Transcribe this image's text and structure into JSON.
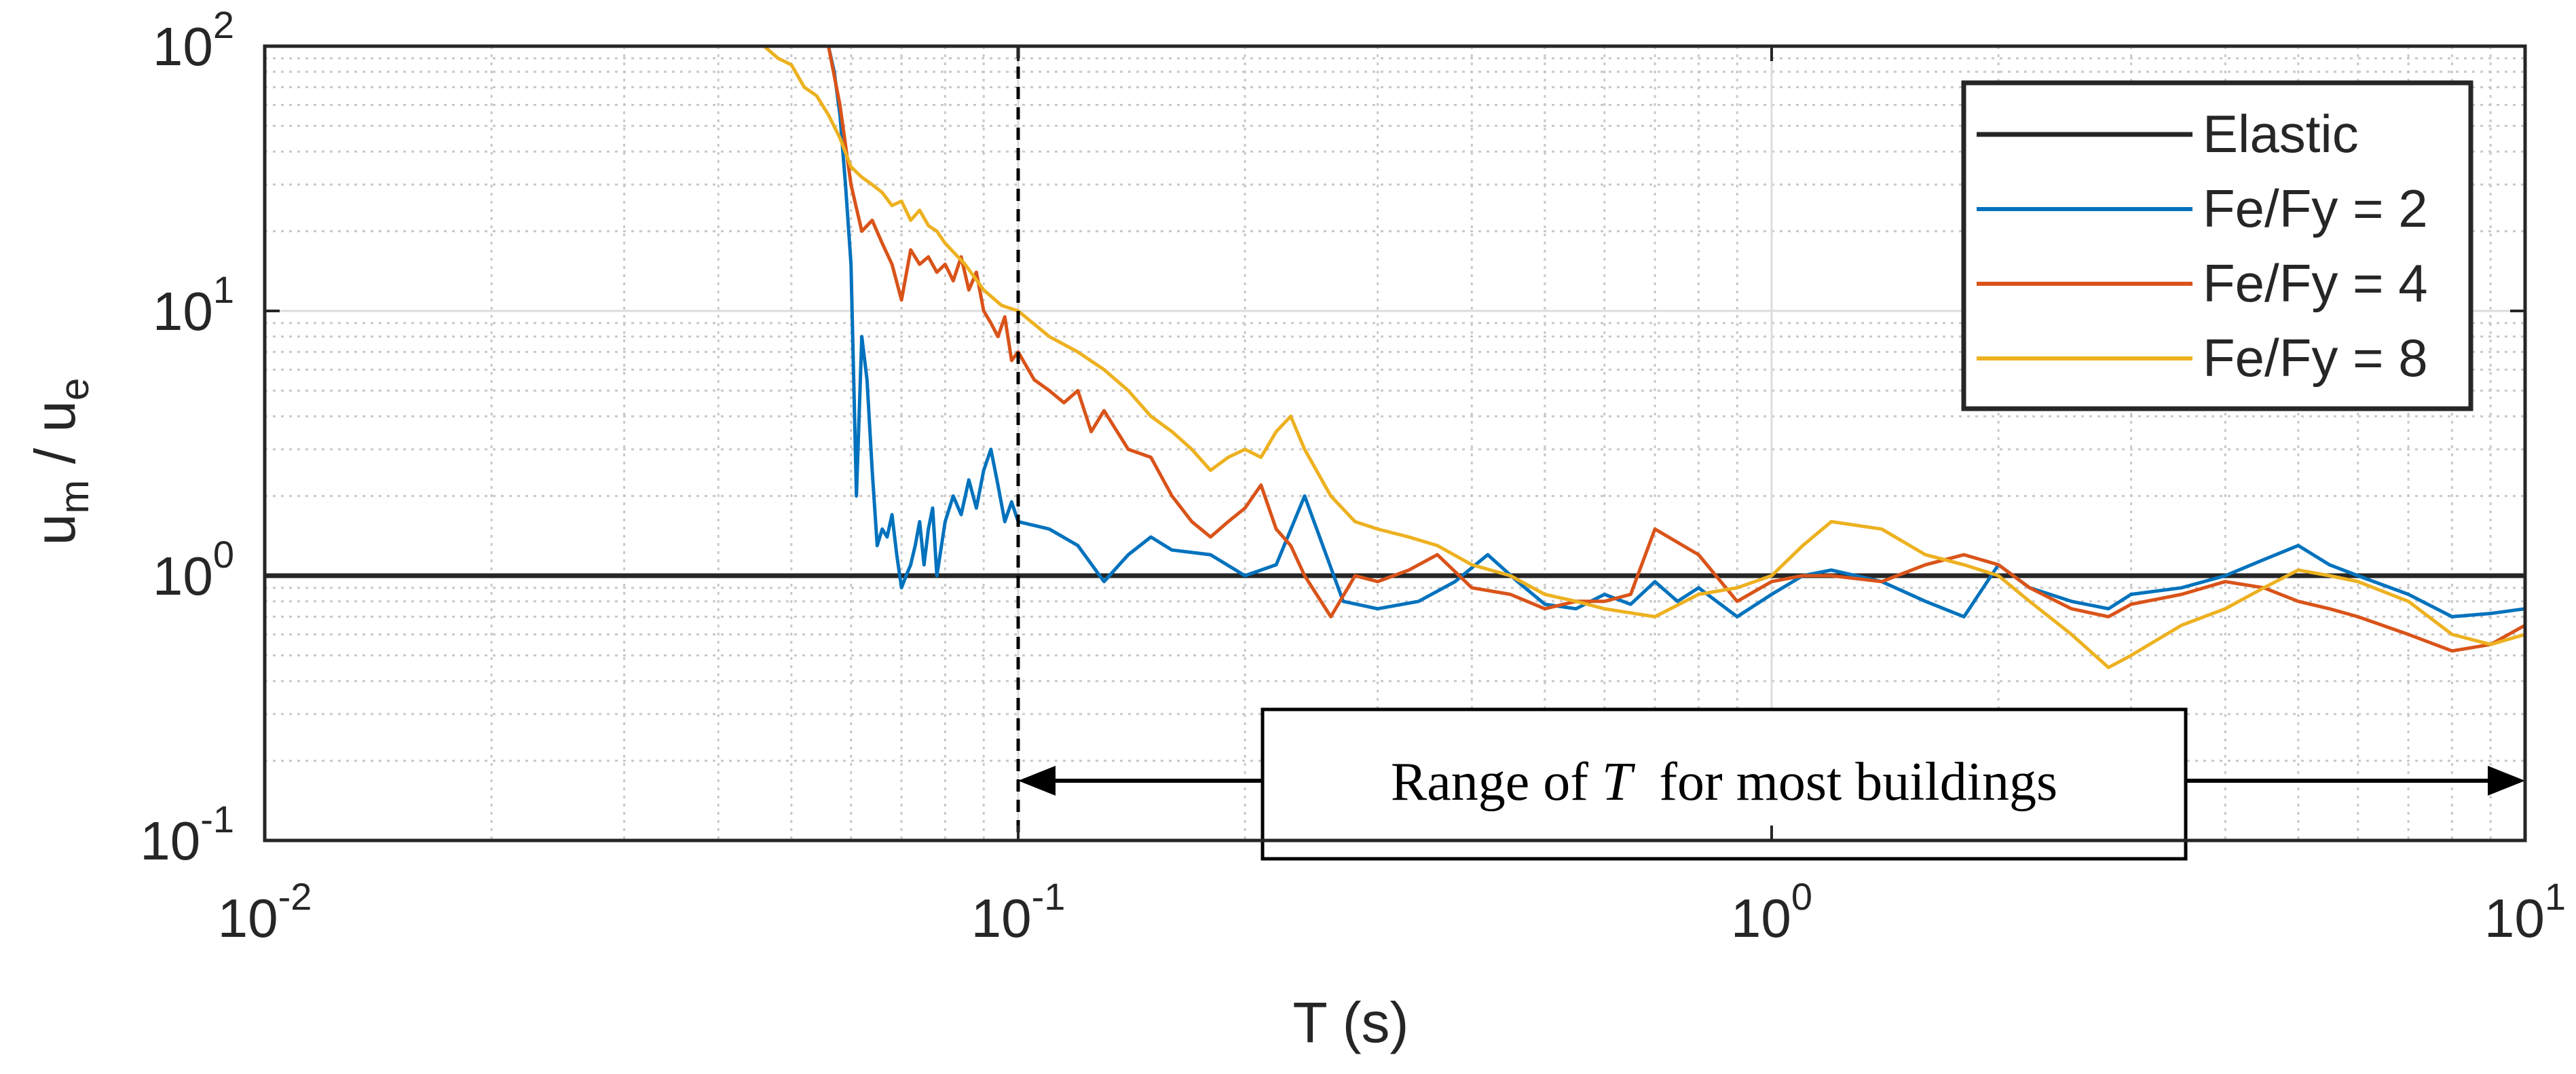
{
  "chart_data": {
    "type": "line",
    "xscale": "log",
    "yscale": "log",
    "xlim": [
      0.01,
      10
    ],
    "ylim": [
      0.1,
      100
    ],
    "xlabel": "T (s)",
    "ylabel_base": "u",
    "ylabel_num_sub": "m",
    "ylabel_sep": " / ",
    "ylabel_den_sub": "e",
    "grid": true,
    "legend_position": "top-right",
    "x_ticks": [
      {
        "value": 0.01,
        "base": "10",
        "exp": "-2"
      },
      {
        "value": 0.1,
        "base": "10",
        "exp": "-1"
      },
      {
        "value": 1,
        "base": "10",
        "exp": "0"
      },
      {
        "value": 10,
        "base": "10",
        "exp": "1"
      }
    ],
    "y_ticks": [
      {
        "value": 0.1,
        "base": "10",
        "exp": "-1"
      },
      {
        "value": 1,
        "base": "10",
        "exp": "0"
      },
      {
        "value": 10,
        "base": "10",
        "exp": "1"
      },
      {
        "value": 100,
        "base": "10",
        "exp": "2"
      }
    ],
    "series": [
      {
        "name": "Elastic",
        "color": "#262626",
        "x": [
          0.01,
          10
        ],
        "y": [
          1,
          1
        ]
      },
      {
        "name": "Fe/Fy = 2",
        "color": "#0072BD",
        "x": [
          0.056,
          0.057,
          0.058,
          0.059,
          0.06,
          0.061,
          0.062,
          0.063,
          0.064,
          0.065,
          0.066,
          0.067,
          0.068,
          0.069,
          0.07,
          0.071,
          0.072,
          0.073,
          0.074,
          0.075,
          0.076,
          0.077,
          0.078,
          0.08,
          0.082,
          0.084,
          0.086,
          0.088,
          0.09,
          0.092,
          0.094,
          0.096,
          0.098,
          0.1,
          0.11,
          0.12,
          0.13,
          0.14,
          0.15,
          0.16,
          0.18,
          0.2,
          0.22,
          0.24,
          0.27,
          0.3,
          0.34,
          0.38,
          0.42,
          0.46,
          0.5,
          0.55,
          0.6,
          0.65,
          0.7,
          0.75,
          0.8,
          0.9,
          1.0,
          1.1,
          1.2,
          1.4,
          1.6,
          1.8,
          2.0,
          2.2,
          2.5,
          2.8,
          3.0,
          3.5,
          4.0,
          4.5,
          5.0,
          5.5,
          6.0,
          7.0,
          8.0,
          9.0,
          10.0
        ],
        "y": [
          100,
          80,
          55,
          30,
          15,
          2.0,
          8.0,
          5.5,
          2.5,
          1.3,
          1.5,
          1.4,
          1.7,
          1.2,
          0.9,
          1.0,
          1.1,
          1.3,
          1.6,
          1.1,
          1.5,
          1.8,
          1.0,
          1.6,
          2.0,
          1.7,
          2.3,
          1.8,
          2.5,
          3.0,
          2.2,
          1.6,
          1.9,
          1.6,
          1.5,
          1.3,
          0.95,
          1.2,
          1.4,
          1.25,
          1.2,
          1.0,
          1.1,
          2.0,
          0.8,
          0.75,
          0.8,
          0.95,
          1.2,
          0.95,
          0.78,
          0.75,
          0.85,
          0.78,
          0.95,
          0.8,
          0.9,
          0.7,
          0.85,
          1.0,
          1.05,
          0.95,
          0.8,
          0.7,
          1.1,
          0.9,
          0.8,
          0.75,
          0.85,
          0.9,
          1.0,
          1.15,
          1.3,
          1.1,
          1.0,
          0.85,
          0.7,
          0.72,
          0.75
        ]
      },
      {
        "name": "Fe/Fy = 4",
        "color": "#D95319",
        "x": [
          0.056,
          0.058,
          0.06,
          0.062,
          0.064,
          0.066,
          0.068,
          0.07,
          0.072,
          0.074,
          0.076,
          0.078,
          0.08,
          0.082,
          0.084,
          0.086,
          0.088,
          0.09,
          0.092,
          0.094,
          0.096,
          0.098,
          0.1,
          0.105,
          0.11,
          0.115,
          0.12,
          0.125,
          0.13,
          0.14,
          0.15,
          0.16,
          0.17,
          0.18,
          0.19,
          0.2,
          0.21,
          0.22,
          0.23,
          0.24,
          0.26,
          0.28,
          0.3,
          0.33,
          0.36,
          0.4,
          0.45,
          0.5,
          0.55,
          0.6,
          0.65,
          0.7,
          0.8,
          0.9,
          1.0,
          1.1,
          1.2,
          1.4,
          1.6,
          1.8,
          2.0,
          2.2,
          2.5,
          2.8,
          3.0,
          3.5,
          4.0,
          4.5,
          5.0,
          5.5,
          6.0,
          7.0,
          8.0,
          9.0,
          10.0
        ],
        "y": [
          100,
          60,
          30,
          20,
          22,
          18,
          15,
          11,
          17,
          15,
          16,
          14,
          15,
          13,
          16,
          12,
          14,
          10,
          9,
          8,
          9.5,
          6.5,
          7,
          5.5,
          5,
          4.5,
          5,
          3.5,
          4.2,
          3,
          2.8,
          2.0,
          1.6,
          1.4,
          1.6,
          1.8,
          2.2,
          1.5,
          1.3,
          1.0,
          0.7,
          1.0,
          0.95,
          1.05,
          1.2,
          0.9,
          0.85,
          0.75,
          0.8,
          0.8,
          0.85,
          1.5,
          1.2,
          0.8,
          0.95,
          1.0,
          1.0,
          0.95,
          1.1,
          1.2,
          1.1,
          0.9,
          0.75,
          0.7,
          0.78,
          0.85,
          0.95,
          0.9,
          0.8,
          0.75,
          0.7,
          0.6,
          0.52,
          0.55,
          0.65
        ]
      },
      {
        "name": "Fe/Fy = 8",
        "color": "#EDB120",
        "x": [
          0.046,
          0.048,
          0.05,
          0.052,
          0.054,
          0.056,
          0.058,
          0.06,
          0.062,
          0.064,
          0.066,
          0.068,
          0.07,
          0.072,
          0.074,
          0.076,
          0.078,
          0.08,
          0.085,
          0.09,
          0.095,
          0.1,
          0.11,
          0.12,
          0.13,
          0.14,
          0.15,
          0.16,
          0.17,
          0.18,
          0.19,
          0.2,
          0.21,
          0.22,
          0.23,
          0.24,
          0.26,
          0.28,
          0.3,
          0.33,
          0.36,
          0.4,
          0.45,
          0.5,
          0.55,
          0.6,
          0.7,
          0.8,
          0.9,
          1.0,
          1.1,
          1.2,
          1.4,
          1.6,
          1.8,
          2.0,
          2.2,
          2.5,
          2.8,
          3.0,
          3.5,
          4.0,
          4.5,
          5.0,
          5.5,
          6.0,
          7.0,
          8.0,
          9.0,
          10.0
        ],
        "y": [
          100,
          90,
          85,
          70,
          65,
          55,
          45,
          35,
          32,
          30,
          28,
          25,
          26,
          22,
          24,
          21,
          20,
          18,
          15,
          12,
          10.5,
          10,
          8,
          7,
          6,
          5,
          4,
          3.5,
          3,
          2.5,
          2.8,
          3,
          2.8,
          3.5,
          4,
          3,
          2,
          1.6,
          1.5,
          1.4,
          1.3,
          1.1,
          1.0,
          0.85,
          0.8,
          0.75,
          0.7,
          0.85,
          0.9,
          1.0,
          1.3,
          1.6,
          1.5,
          1.2,
          1.1,
          1.0,
          0.8,
          0.6,
          0.45,
          0.5,
          0.65,
          0.75,
          0.9,
          1.05,
          1.0,
          0.95,
          0.8,
          0.6,
          0.55,
          0.6
        ]
      }
    ],
    "vline": {
      "x": 0.1,
      "style": "dashed"
    },
    "annotation": {
      "prefix": "Range of ",
      "symbol": "T",
      "suffix": "  for most buildings",
      "x_from": 0.1,
      "x_to": 10
    }
  }
}
